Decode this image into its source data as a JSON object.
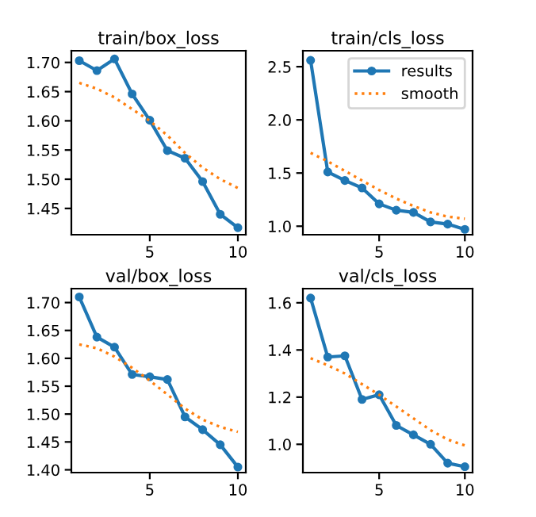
{
  "chart_data": [
    {
      "type": "line",
      "title": "train/box_loss",
      "x": [
        1,
        2,
        3,
        4,
        5,
        6,
        7,
        8,
        9,
        10
      ],
      "xlim": [
        0.55,
        10.45
      ],
      "xticks": [
        5,
        10
      ],
      "ylim": [
        1.405,
        1.72
      ],
      "yticks": [
        1.45,
        {
          "value": 1.5,
          "label": "1.50"
        },
        1.55,
        {
          "value": 1.6,
          "label": "1.60"
        },
        1.65,
        {
          "value": 1.7,
          "label": "1.70"
        }
      ],
      "grid": false,
      "legend": false,
      "series": [
        {
          "color": "#1f77b4",
          "marker": "circle",
          "line_style": "solid",
          "values": [
            1.703,
            1.686,
            1.706,
            1.646,
            1.601,
            1.549,
            1.536,
            1.496,
            1.44,
            1.417
          ]
        },
        {
          "color": "#ff7f0e",
          "marker": "none",
          "line_style": "dotted",
          "values": [
            1.665,
            1.655,
            1.64,
            1.62,
            1.6,
            1.575,
            1.545,
            1.52,
            1.5,
            1.485
          ]
        }
      ]
    },
    {
      "type": "line",
      "title": "train/cls_loss",
      "x": [
        1,
        2,
        3,
        4,
        5,
        6,
        7,
        8,
        9,
        10
      ],
      "xlim": [
        0.55,
        10.45
      ],
      "xticks": [
        5,
        10
      ],
      "ylim": [
        0.92,
        2.65
      ],
      "yticks": [
        {
          "value": 1.0,
          "label": "1.0"
        },
        1.5,
        {
          "value": 2.0,
          "label": "2.0"
        },
        2.5
      ],
      "grid": false,
      "legend": "top right",
      "series": [
        {
          "name": "results",
          "color": "#1f77b4",
          "marker": "circle",
          "line_style": "solid",
          "values": [
            2.56,
            1.51,
            1.43,
            1.36,
            1.21,
            1.15,
            1.13,
            1.04,
            1.02,
            0.97
          ]
        },
        {
          "name": "smooth",
          "color": "#ff7f0e",
          "marker": "none",
          "line_style": "dotted",
          "values": [
            1.69,
            1.61,
            1.52,
            1.43,
            1.34,
            1.26,
            1.19,
            1.13,
            1.09,
            1.07
          ]
        }
      ]
    },
    {
      "type": "line",
      "title": "val/box_loss",
      "x": [
        1,
        2,
        3,
        4,
        5,
        6,
        7,
        8,
        9,
        10
      ],
      "xlim": [
        0.55,
        10.45
      ],
      "xticks": [
        5,
        10
      ],
      "ylim": [
        1.395,
        1.725
      ],
      "yticks": [
        {
          "value": 1.4,
          "label": "1.40"
        },
        1.45,
        {
          "value": 1.5,
          "label": "1.50"
        },
        1.55,
        {
          "value": 1.6,
          "label": "1.60"
        },
        1.65,
        {
          "value": 1.7,
          "label": "1.70"
        }
      ],
      "grid": false,
      "legend": false,
      "series": [
        {
          "color": "#1f77b4",
          "marker": "circle",
          "line_style": "solid",
          "values": [
            1.71,
            1.638,
            1.62,
            1.571,
            1.567,
            1.562,
            1.495,
            1.472,
            1.445,
            1.405
          ]
        },
        {
          "color": "#ff7f0e",
          "marker": "none",
          "line_style": "dotted",
          "values": [
            1.625,
            1.618,
            1.603,
            1.583,
            1.56,
            1.535,
            1.51,
            1.49,
            1.477,
            1.468
          ]
        }
      ]
    },
    {
      "type": "line",
      "title": "val/cls_loss",
      "x": [
        1,
        2,
        3,
        4,
        5,
        6,
        7,
        8,
        9,
        10
      ],
      "xlim": [
        0.55,
        10.45
      ],
      "xticks": [
        5,
        10
      ],
      "ylim": [
        0.88,
        1.66
      ],
      "yticks": [
        {
          "value": 1.0,
          "label": "1.0"
        },
        1.2,
        1.4,
        1.6
      ],
      "grid": false,
      "legend": false,
      "series": [
        {
          "color": "#1f77b4",
          "marker": "circle",
          "line_style": "solid",
          "values": [
            1.62,
            1.37,
            1.375,
            1.19,
            1.21,
            1.08,
            1.04,
            1.0,
            0.92,
            0.905
          ]
        },
        {
          "color": "#ff7f0e",
          "marker": "none",
          "line_style": "dotted",
          "values": [
            1.365,
            1.335,
            1.3,
            1.255,
            1.21,
            1.16,
            1.11,
            1.06,
            1.02,
            0.995
          ]
        }
      ]
    }
  ]
}
